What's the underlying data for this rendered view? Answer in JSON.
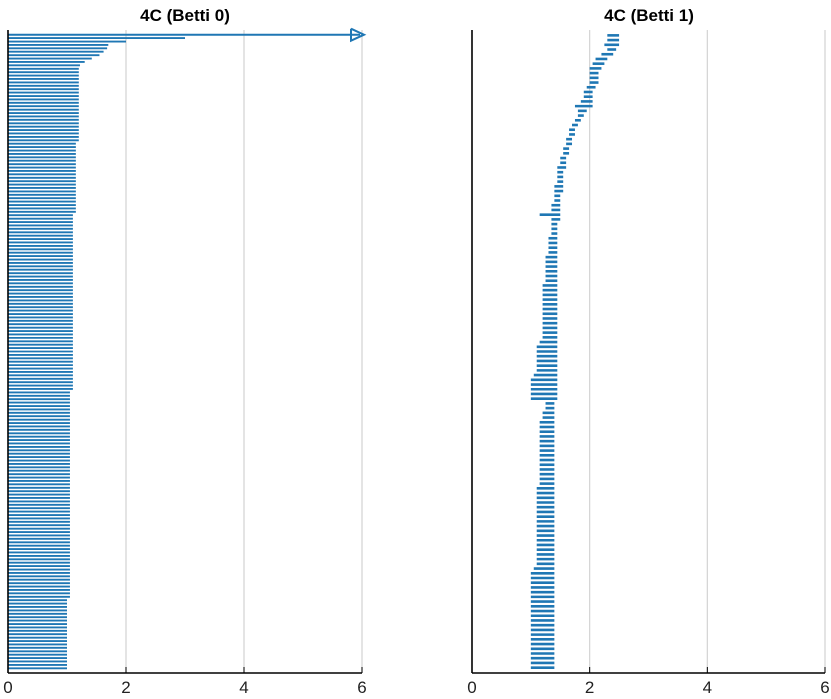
{
  "chart_data": [
    {
      "type": "barcode",
      "title": "4C (Betti 0)",
      "xlim": [
        0,
        6
      ],
      "xticks": [
        "0",
        "2",
        "4",
        "6"
      ],
      "grid": true,
      "color": "#1f77b4",
      "infinite_bar": {
        "birth": 0,
        "death": "Inf"
      },
      "bars": [
        [
          0,
          3.0
        ],
        [
          0,
          2.0
        ],
        [
          0,
          1.7
        ],
        [
          0,
          1.68
        ],
        [
          0,
          1.62
        ],
        [
          0,
          1.55
        ],
        [
          0,
          1.42
        ],
        [
          0,
          1.3
        ],
        [
          0,
          1.22
        ],
        [
          0,
          1.2
        ],
        [
          0,
          1.2
        ],
        [
          0,
          1.2
        ],
        [
          0,
          1.2
        ],
        [
          0,
          1.2
        ],
        [
          0,
          1.2
        ],
        [
          0,
          1.2
        ],
        [
          0,
          1.2
        ],
        [
          0,
          1.2
        ],
        [
          0,
          1.2
        ],
        [
          0,
          1.2
        ],
        [
          0,
          1.2
        ],
        [
          0,
          1.2
        ],
        [
          0,
          1.2
        ],
        [
          0,
          1.2
        ],
        [
          0,
          1.2
        ],
        [
          0,
          1.2
        ],
        [
          0,
          1.2
        ],
        [
          0,
          1.2
        ],
        [
          0,
          1.2
        ],
        [
          0,
          1.2
        ],
        [
          0,
          1.2
        ],
        [
          0,
          1.15
        ],
        [
          0,
          1.15
        ],
        [
          0,
          1.15
        ],
        [
          0,
          1.15
        ],
        [
          0,
          1.15
        ],
        [
          0,
          1.15
        ],
        [
          0,
          1.15
        ],
        [
          0,
          1.15
        ],
        [
          0,
          1.15
        ],
        [
          0,
          1.15
        ],
        [
          0,
          1.15
        ],
        [
          0,
          1.15
        ],
        [
          0,
          1.15
        ],
        [
          0,
          1.15
        ],
        [
          0,
          1.15
        ],
        [
          0,
          1.15
        ],
        [
          0,
          1.15
        ],
        [
          0,
          1.15
        ],
        [
          0,
          1.15
        ],
        [
          0,
          1.15
        ],
        [
          0,
          1.15
        ],
        [
          0,
          1.1
        ],
        [
          0,
          1.1
        ],
        [
          0,
          1.1
        ],
        [
          0,
          1.1
        ],
        [
          0,
          1.1
        ],
        [
          0,
          1.1
        ],
        [
          0,
          1.1
        ],
        [
          0,
          1.1
        ],
        [
          0,
          1.1
        ],
        [
          0,
          1.1
        ],
        [
          0,
          1.1
        ],
        [
          0,
          1.1
        ],
        [
          0,
          1.1
        ],
        [
          0,
          1.1
        ],
        [
          0,
          1.1
        ],
        [
          0,
          1.1
        ],
        [
          0,
          1.1
        ],
        [
          0,
          1.1
        ],
        [
          0,
          1.1
        ],
        [
          0,
          1.1
        ],
        [
          0,
          1.1
        ],
        [
          0,
          1.1
        ],
        [
          0,
          1.1
        ],
        [
          0,
          1.1
        ],
        [
          0,
          1.1
        ],
        [
          0,
          1.1
        ],
        [
          0,
          1.1
        ],
        [
          0,
          1.1
        ],
        [
          0,
          1.1
        ],
        [
          0,
          1.1
        ],
        [
          0,
          1.1
        ],
        [
          0,
          1.1
        ],
        [
          0,
          1.1
        ],
        [
          0,
          1.1
        ],
        [
          0,
          1.1
        ],
        [
          0,
          1.1
        ],
        [
          0,
          1.1
        ],
        [
          0,
          1.1
        ],
        [
          0,
          1.1
        ],
        [
          0,
          1.1
        ],
        [
          0,
          1.1
        ],
        [
          0,
          1.1
        ],
        [
          0,
          1.1
        ],
        [
          0,
          1.1
        ],
        [
          0,
          1.1
        ],
        [
          0,
          1.1
        ],
        [
          0,
          1.1
        ],
        [
          0,
          1.1
        ],
        [
          0,
          1.1
        ],
        [
          0,
          1.1
        ],
        [
          0,
          1.1
        ],
        [
          0,
          1.1
        ],
        [
          0,
          1.05
        ],
        [
          0,
          1.05
        ],
        [
          0,
          1.05
        ],
        [
          0,
          1.05
        ],
        [
          0,
          1.05
        ],
        [
          0,
          1.05
        ],
        [
          0,
          1.05
        ],
        [
          0,
          1.05
        ],
        [
          0,
          1.05
        ],
        [
          0,
          1.05
        ],
        [
          0,
          1.05
        ],
        [
          0,
          1.05
        ],
        [
          0,
          1.05
        ],
        [
          0,
          1.05
        ],
        [
          0,
          1.05
        ],
        [
          0,
          1.05
        ],
        [
          0,
          1.05
        ],
        [
          0,
          1.05
        ],
        [
          0,
          1.05
        ],
        [
          0,
          1.05
        ],
        [
          0,
          1.05
        ],
        [
          0,
          1.05
        ],
        [
          0,
          1.05
        ],
        [
          0,
          1.05
        ],
        [
          0,
          1.05
        ],
        [
          0,
          1.05
        ],
        [
          0,
          1.05
        ],
        [
          0,
          1.05
        ],
        [
          0,
          1.05
        ],
        [
          0,
          1.05
        ],
        [
          0,
          1.05
        ],
        [
          0,
          1.05
        ],
        [
          0,
          1.05
        ],
        [
          0,
          1.05
        ],
        [
          0,
          1.05
        ],
        [
          0,
          1.05
        ],
        [
          0,
          1.05
        ],
        [
          0,
          1.05
        ],
        [
          0,
          1.05
        ],
        [
          0,
          1.05
        ],
        [
          0,
          1.05
        ],
        [
          0,
          1.05
        ],
        [
          0,
          1.05
        ],
        [
          0,
          1.05
        ],
        [
          0,
          1.05
        ],
        [
          0,
          1.05
        ],
        [
          0,
          1.05
        ],
        [
          0,
          1.05
        ],
        [
          0,
          1.05
        ],
        [
          0,
          1.05
        ],
        [
          0,
          1.05
        ],
        [
          0,
          1.05
        ],
        [
          0,
          1.05
        ],
        [
          0,
          1.05
        ],
        [
          0,
          1.05
        ],
        [
          0,
          1.05
        ],
        [
          0,
          1.05
        ],
        [
          0,
          1.05
        ],
        [
          0,
          1.05
        ],
        [
          0,
          1.05
        ],
        [
          0,
          1.05
        ],
        [
          0,
          1.0
        ],
        [
          0,
          1.0
        ],
        [
          0,
          1.0
        ],
        [
          0,
          1.0
        ],
        [
          0,
          1.0
        ],
        [
          0,
          1.0
        ],
        [
          0,
          1.0
        ],
        [
          0,
          1.0
        ],
        [
          0,
          1.0
        ],
        [
          0,
          1.0
        ],
        [
          0,
          1.0
        ],
        [
          0,
          1.0
        ],
        [
          0,
          1.0
        ],
        [
          0,
          1.0
        ],
        [
          0,
          1.0
        ],
        [
          0,
          1.0
        ],
        [
          0,
          1.0
        ],
        [
          0,
          1.0
        ],
        [
          0,
          1.0
        ],
        [
          0,
          1.0
        ],
        [
          0,
          1.0
        ]
      ]
    },
    {
      "type": "barcode",
      "title": "4C (Betti 1)",
      "xlim": [
        0,
        6
      ],
      "xticks": [
        "0",
        "2",
        "4",
        "6"
      ],
      "grid": true,
      "color": "#1f77b4",
      "bars": [
        [
          2.3,
          2.5
        ],
        [
          2.3,
          2.5
        ],
        [
          2.25,
          2.5
        ],
        [
          2.3,
          2.45
        ],
        [
          2.2,
          2.4
        ],
        [
          2.1,
          2.3
        ],
        [
          2.05,
          2.25
        ],
        [
          2.0,
          2.2
        ],
        [
          2.0,
          2.15
        ],
        [
          2.0,
          2.15
        ],
        [
          2.0,
          2.15
        ],
        [
          1.95,
          2.1
        ],
        [
          1.9,
          2.05
        ],
        [
          1.9,
          2.05
        ],
        [
          1.85,
          2.05
        ],
        [
          1.75,
          2.05
        ],
        [
          1.8,
          1.95
        ],
        [
          1.8,
          1.9
        ],
        [
          1.75,
          1.85
        ],
        [
          1.7,
          1.8
        ],
        [
          1.65,
          1.75
        ],
        [
          1.65,
          1.75
        ],
        [
          1.6,
          1.7
        ],
        [
          1.6,
          1.7
        ],
        [
          1.55,
          1.65
        ],
        [
          1.55,
          1.65
        ],
        [
          1.5,
          1.6
        ],
        [
          1.5,
          1.6
        ],
        [
          1.45,
          1.6
        ],
        [
          1.45,
          1.55
        ],
        [
          1.45,
          1.55
        ],
        [
          1.45,
          1.55
        ],
        [
          1.4,
          1.55
        ],
        [
          1.4,
          1.55
        ],
        [
          1.4,
          1.5
        ],
        [
          1.4,
          1.5
        ],
        [
          1.35,
          1.5
        ],
        [
          1.35,
          1.5
        ],
        [
          1.15,
          1.5
        ],
        [
          1.35,
          1.5
        ],
        [
          1.35,
          1.45
        ],
        [
          1.35,
          1.45
        ],
        [
          1.35,
          1.45
        ],
        [
          1.3,
          1.45
        ],
        [
          1.3,
          1.45
        ],
        [
          1.3,
          1.45
        ],
        [
          1.3,
          1.45
        ],
        [
          1.25,
          1.45
        ],
        [
          1.25,
          1.45
        ],
        [
          1.25,
          1.45
        ],
        [
          1.25,
          1.45
        ],
        [
          1.25,
          1.45
        ],
        [
          1.25,
          1.45
        ],
        [
          1.2,
          1.45
        ],
        [
          1.2,
          1.45
        ],
        [
          1.2,
          1.45
        ],
        [
          1.2,
          1.45
        ],
        [
          1.2,
          1.45
        ],
        [
          1.2,
          1.45
        ],
        [
          1.2,
          1.45
        ],
        [
          1.2,
          1.45
        ],
        [
          1.2,
          1.45
        ],
        [
          1.2,
          1.45
        ],
        [
          1.2,
          1.45
        ],
        [
          1.2,
          1.45
        ],
        [
          1.15,
          1.45
        ],
        [
          1.1,
          1.45
        ],
        [
          1.1,
          1.45
        ],
        [
          1.1,
          1.45
        ],
        [
          1.1,
          1.45
        ],
        [
          1.1,
          1.45
        ],
        [
          1.1,
          1.45
        ],
        [
          1.05,
          1.45
        ],
        [
          1.0,
          1.45
        ],
        [
          1.0,
          1.45
        ],
        [
          1.0,
          1.45
        ],
        [
          1.0,
          1.45
        ],
        [
          1.0,
          1.45
        ],
        [
          1.25,
          1.4
        ],
        [
          1.25,
          1.4
        ],
        [
          1.2,
          1.4
        ],
        [
          1.2,
          1.4
        ],
        [
          1.15,
          1.4
        ],
        [
          1.15,
          1.4
        ],
        [
          1.15,
          1.4
        ],
        [
          1.15,
          1.4
        ],
        [
          1.15,
          1.4
        ],
        [
          1.15,
          1.4
        ],
        [
          1.15,
          1.4
        ],
        [
          1.15,
          1.4
        ],
        [
          1.15,
          1.4
        ],
        [
          1.15,
          1.4
        ],
        [
          1.15,
          1.4
        ],
        [
          1.15,
          1.4
        ],
        [
          1.15,
          1.4
        ],
        [
          1.15,
          1.4
        ],
        [
          1.1,
          1.4
        ],
        [
          1.1,
          1.4
        ],
        [
          1.1,
          1.4
        ],
        [
          1.1,
          1.4
        ],
        [
          1.1,
          1.4
        ],
        [
          1.1,
          1.4
        ],
        [
          1.1,
          1.4
        ],
        [
          1.1,
          1.4
        ],
        [
          1.1,
          1.4
        ],
        [
          1.1,
          1.4
        ],
        [
          1.1,
          1.4
        ],
        [
          1.1,
          1.4
        ],
        [
          1.1,
          1.4
        ],
        [
          1.1,
          1.4
        ],
        [
          1.1,
          1.4
        ],
        [
          1.1,
          1.4
        ],
        [
          1.1,
          1.4
        ],
        [
          1.05,
          1.4
        ],
        [
          1.0,
          1.4
        ],
        [
          1.0,
          1.4
        ],
        [
          1.0,
          1.4
        ],
        [
          1.0,
          1.4
        ],
        [
          1.0,
          1.4
        ],
        [
          1.0,
          1.4
        ],
        [
          1.0,
          1.4
        ],
        [
          1.0,
          1.4
        ],
        [
          1.0,
          1.4
        ],
        [
          1.0,
          1.4
        ],
        [
          1.0,
          1.4
        ],
        [
          1.0,
          1.4
        ],
        [
          1.0,
          1.4
        ],
        [
          1.0,
          1.4
        ],
        [
          1.0,
          1.4
        ],
        [
          1.0,
          1.4
        ],
        [
          1.0,
          1.4
        ],
        [
          1.0,
          1.4
        ],
        [
          1.0,
          1.4
        ],
        [
          1.0,
          1.4
        ],
        [
          1.0,
          1.4
        ]
      ]
    }
  ]
}
